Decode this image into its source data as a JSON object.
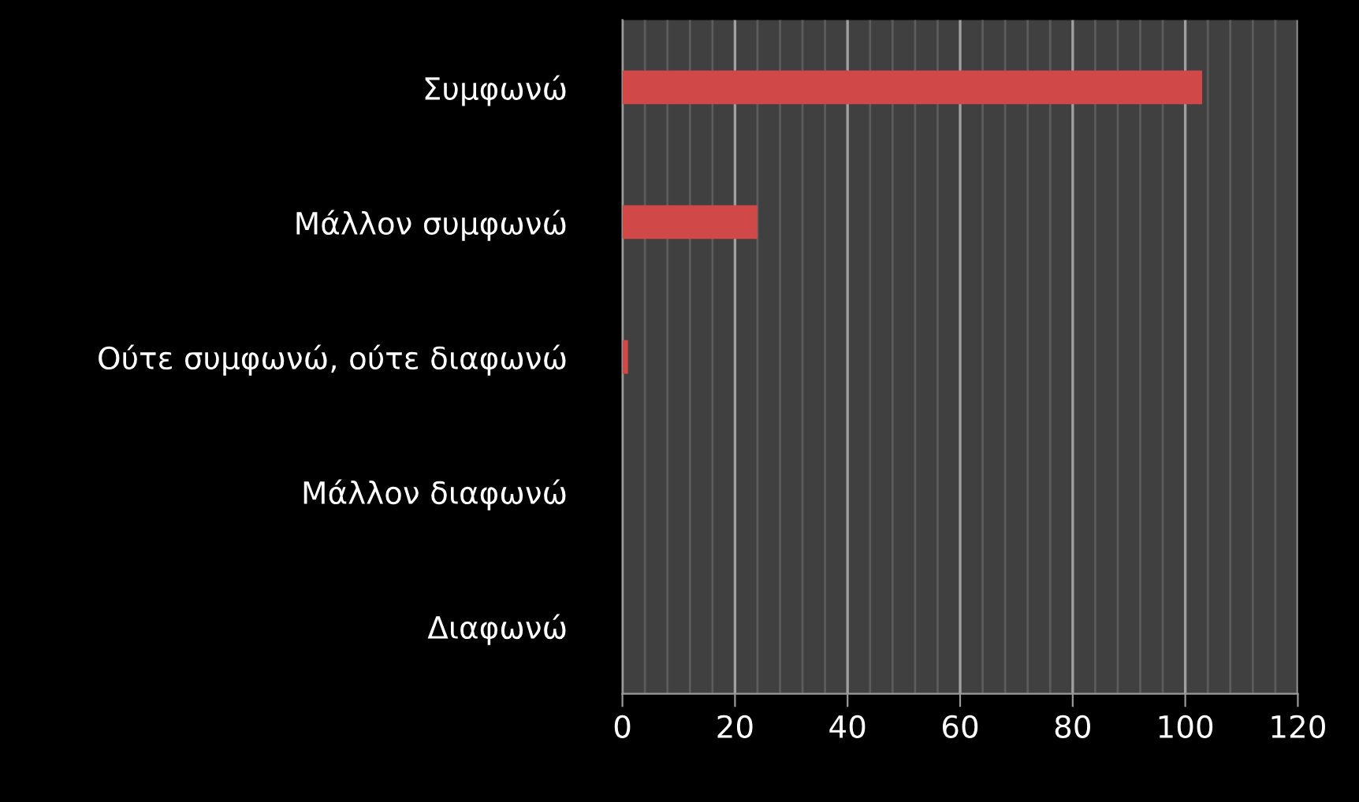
{
  "chart_data": {
    "type": "bar",
    "orientation": "horizontal",
    "categories": [
      "Συμφωνώ",
      "Μάλλον συμφωνώ",
      "Ούτε συμφωνώ, ούτε διαφωνώ",
      "Μάλλον διαφωνώ",
      "Διαφωνώ"
    ],
    "values": [
      103,
      24,
      1,
      0,
      0
    ],
    "color": "#d04848",
    "xlim": [
      0,
      120
    ],
    "xticks": [
      0,
      {
        "value": 4,
        "label": null
      },
      {
        "value": 8,
        "label": null
      },
      {
        "value": 12,
        "label": null
      },
      {
        "value": 16,
        "label": null
      },
      20,
      {
        "value": 24,
        "label": null
      },
      {
        "value": 28,
        "label": null
      },
      {
        "value": 32,
        "label": null
      },
      {
        "value": 36,
        "label": null
      },
      40,
      {
        "value": 44,
        "label": null
      },
      {
        "value": 48,
        "label": null
      },
      {
        "value": 52,
        "label": null
      },
      {
        "value": 56,
        "label": null
      },
      60,
      {
        "value": 64,
        "label": null
      },
      {
        "value": 68,
        "label": null
      },
      {
        "value": 72,
        "label": null
      },
      {
        "value": 76,
        "label": null
      },
      80,
      {
        "value": 84,
        "label": null
      },
      {
        "value": 88,
        "label": null
      },
      {
        "value": 92,
        "label": null
      },
      {
        "value": 96,
        "label": null
      },
      100,
      {
        "value": 104,
        "label": null
      },
      {
        "value": 108,
        "label": null
      },
      {
        "value": 112,
        "label": null
      },
      {
        "value": 116,
        "label": null
      },
      120
    ],
    "grid": "x",
    "legend": false
  }
}
